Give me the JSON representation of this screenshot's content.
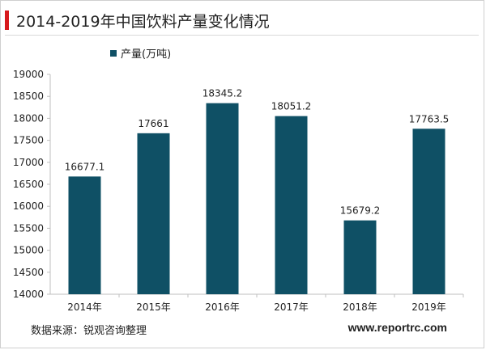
{
  "header": {
    "title": "2014-2019年中国饮料产量变化情况"
  },
  "footer": {
    "source": "数据来源：锐观咨询整理",
    "website": "www.reportrc.com"
  },
  "colors": {
    "bar": "#0f5065",
    "accent": "#d7191c"
  },
  "chart_data": {
    "type": "bar",
    "title": "2014-2019年中国饮料产量变化情况",
    "categories": [
      "2014年",
      "2015年",
      "2016年",
      "2017年",
      "2018年",
      "2019年"
    ],
    "series": [
      {
        "name": "产量(万吨)",
        "values": [
          16677.1,
          17661,
          18345.2,
          18051.2,
          15679.2,
          17763.5
        ],
        "labels": [
          "16677.1",
          "17661",
          "18345.2",
          "18051.2",
          "15679.2",
          "17763.5"
        ]
      }
    ],
    "ylim": [
      14000,
      19000
    ],
    "yticks": [
      14000,
      14500,
      15000,
      15500,
      16000,
      16500,
      17000,
      17500,
      18000,
      18500,
      19000
    ],
    "grid": false,
    "legend": "top-left"
  }
}
